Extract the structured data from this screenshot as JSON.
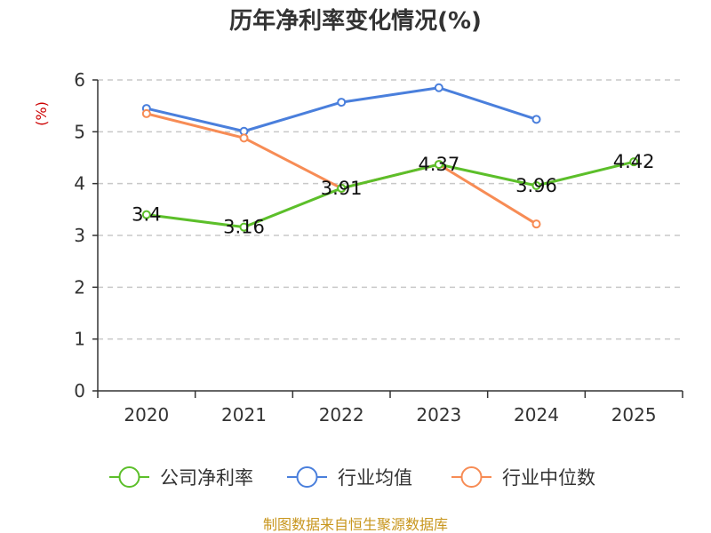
{
  "chart_data": {
    "type": "line",
    "title": "历年净利率变化情况(%)",
    "ylabel": "(%)",
    "xlabel": "",
    "categories": [
      "2020",
      "2021",
      "2022",
      "2023",
      "2024",
      "2025"
    ],
    "ylim": [
      0,
      6
    ],
    "yticks": [
      "0",
      "1",
      "2",
      "3",
      "4",
      "5",
      "6"
    ],
    "grid": true,
    "legend_position": "bottom",
    "series": [
      {
        "name": "公司净利率",
        "color": "#5cbf2a",
        "values": [
          3.4,
          3.16,
          3.91,
          4.37,
          3.96,
          4.42
        ],
        "labels": [
          "3.4",
          "3.16",
          "3.91",
          "4.37",
          "3.96",
          "4.42"
        ]
      },
      {
        "name": "行业均值",
        "color": "#4a7fdc",
        "values": [
          5.45,
          5.01,
          5.57,
          5.85,
          5.24,
          null
        ],
        "labels": []
      },
      {
        "name": "行业中位数",
        "color": "#f78c55",
        "values": [
          5.35,
          4.88,
          3.91,
          4.37,
          3.22,
          null
        ],
        "labels": []
      }
    ],
    "source": "制图数据来自恒生聚源数据库"
  }
}
